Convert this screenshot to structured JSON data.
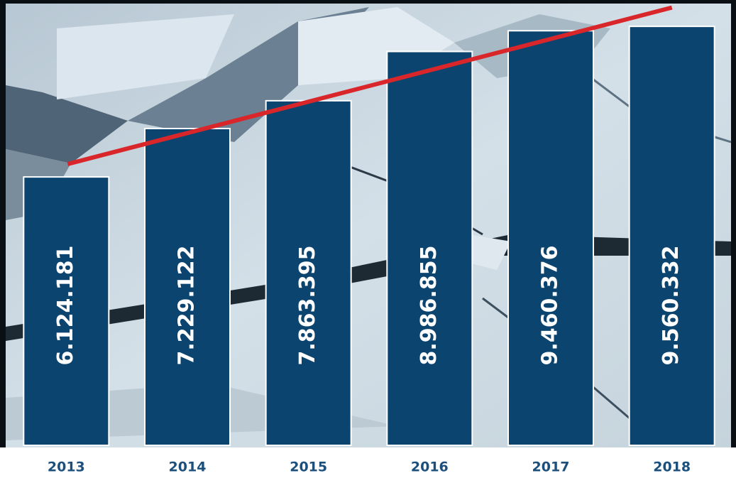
{
  "chart_data": {
    "type": "bar",
    "categories": [
      "2013",
      "2014",
      "2015",
      "2016",
      "2017",
      "2018"
    ],
    "values": [
      6124181,
      7229122,
      7863395,
      8986855,
      9460376,
      9560332
    ],
    "value_labels": [
      "6.124.181",
      "7.229.122",
      "7.863.395",
      "8.986.855",
      "9.460.376",
      "9.560.332"
    ],
    "color": "#0c4470",
    "ylim": [
      0,
      10000000
    ],
    "trendline": true,
    "trendline_color": "#d9262a"
  }
}
